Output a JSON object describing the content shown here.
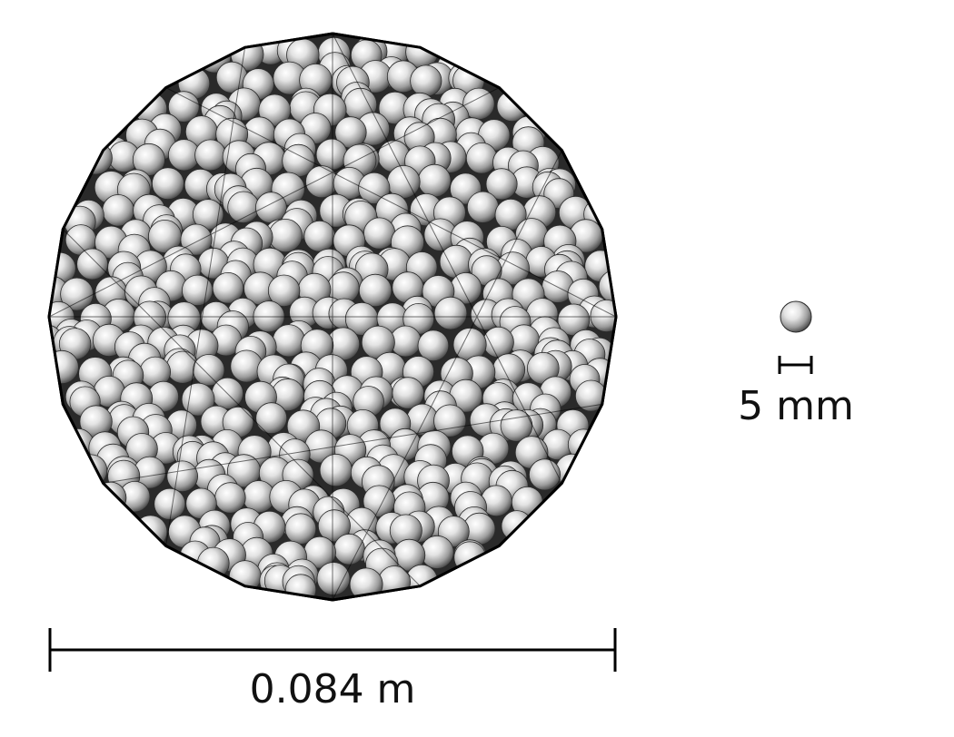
{
  "colors": {
    "background": "#ffffff",
    "container_fill": "#2a2a2a",
    "container_edge": "#000000",
    "sphere_highlight": "#ffffff",
    "sphere_mid": "#b5b5b5",
    "sphere_shadow": "#3a3a3a",
    "scale_bar": "#000000"
  },
  "icons": {
    "reference_sphere": "sphere-icon"
  },
  "container_scale_label": "0.084 m",
  "particle_scale_label": "5 mm"
}
